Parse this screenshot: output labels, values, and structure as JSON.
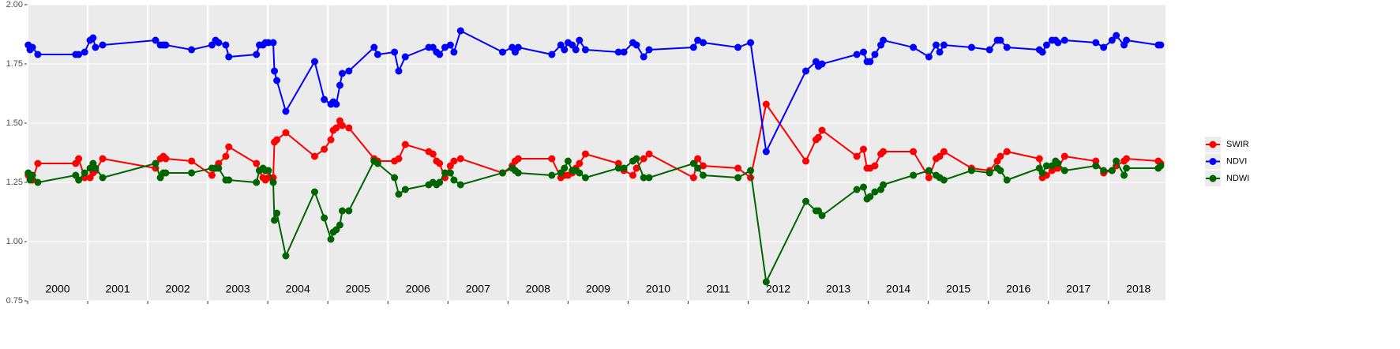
{
  "chart_data": {
    "type": "line",
    "x": [
      2000.01,
      2000.04,
      2000.08,
      2000.17,
      2000.8,
      2000.85,
      2000.95,
      2001.04,
      2001.09,
      2001.13,
      2001.25,
      2002.13,
      2002.21,
      2002.26,
      2002.3,
      2002.73,
      2003.07,
      2003.13,
      2003.18,
      2003.3,
      2003.35,
      2003.81,
      2003.86,
      2003.92,
      2003.96,
      2004.01,
      2004.09,
      2004.11,
      2004.15,
      2004.3,
      2004.78,
      2004.94,
      2005.05,
      2005.09,
      2005.14,
      2005.2,
      2005.24,
      2005.35,
      2005.77,
      2005.83,
      2006.11,
      2006.18,
      2006.29,
      2006.68,
      2006.75,
      2006.81,
      2006.86,
      2006.95,
      2007.04,
      2007.1,
      2007.21,
      2007.91,
      2008.07,
      2008.12,
      2008.17,
      2008.73,
      2008.88,
      2008.94,
      2009.0,
      2009.07,
      2009.13,
      2009.19,
      2009.29,
      2009.84,
      2009.93,
      2010.08,
      2010.14,
      2010.26,
      2010.35,
      2011.09,
      2011.16,
      2011.25,
      2011.83,
      2012.04,
      2012.3,
      2012.96,
      2013.13,
      2013.17,
      2013.23,
      2013.81,
      2013.92,
      2013.98,
      2014.03,
      2014.11,
      2014.21,
      2014.25,
      2014.75,
      2015.01,
      2015.13,
      2015.19,
      2015.26,
      2015.72,
      2016.02,
      2016.15,
      2016.2,
      2016.31,
      2016.85,
      2016.9,
      2016.97,
      2017.06,
      2017.12,
      2017.16,
      2017.27,
      2017.79,
      2017.92,
      2018.06,
      2018.13,
      2018.26,
      2018.3,
      2018.83,
      2018.87
    ],
    "series": [
      {
        "name": "SWIR",
        "color": "#ff0000",
        "values": [
          1.28,
          1.27,
          1.26,
          1.33,
          1.33,
          1.35,
          1.27,
          1.27,
          1.29,
          1.3,
          1.35,
          1.31,
          1.35,
          1.36,
          1.35,
          1.34,
          1.28,
          1.31,
          1.33,
          1.36,
          1.4,
          1.33,
          1.3,
          1.27,
          1.26,
          1.27,
          1.27,
          1.42,
          1.43,
          1.46,
          1.36,
          1.39,
          1.43,
          1.47,
          1.48,
          1.51,
          1.49,
          1.48,
          1.35,
          1.34,
          1.34,
          1.35,
          1.41,
          1.38,
          1.37,
          1.34,
          1.33,
          1.27,
          1.32,
          1.34,
          1.35,
          1.29,
          1.32,
          1.34,
          1.35,
          1.35,
          1.27,
          1.28,
          1.28,
          1.29,
          1.31,
          1.33,
          1.37,
          1.33,
          1.3,
          1.28,
          1.31,
          1.35,
          1.37,
          1.27,
          1.35,
          1.32,
          1.31,
          1.27,
          1.58,
          1.34,
          1.43,
          1.44,
          1.47,
          1.36,
          1.39,
          1.31,
          1.31,
          1.32,
          1.37,
          1.38,
          1.38,
          1.27,
          1.35,
          1.36,
          1.38,
          1.31,
          1.3,
          1.34,
          1.36,
          1.38,
          1.35,
          1.27,
          1.28,
          1.3,
          1.31,
          1.31,
          1.36,
          1.34,
          1.29,
          1.3,
          1.32,
          1.34,
          1.35,
          1.34,
          1.33
        ]
      },
      {
        "name": "NDVI",
        "color": "#0000ff",
        "values": [
          1.83,
          1.81,
          1.82,
          1.79,
          1.79,
          1.79,
          1.8,
          1.85,
          1.86,
          1.82,
          1.83,
          1.85,
          1.83,
          1.83,
          1.83,
          1.81,
          1.83,
          1.85,
          1.84,
          1.83,
          1.78,
          1.79,
          1.83,
          1.83,
          1.84,
          1.84,
          1.84,
          1.72,
          1.68,
          1.55,
          1.76,
          1.6,
          1.58,
          1.59,
          1.58,
          1.66,
          1.71,
          1.72,
          1.82,
          1.79,
          1.8,
          1.72,
          1.78,
          1.82,
          1.82,
          1.8,
          1.79,
          1.82,
          1.83,
          1.8,
          1.89,
          1.8,
          1.82,
          1.8,
          1.82,
          1.79,
          1.83,
          1.81,
          1.84,
          1.83,
          1.81,
          1.85,
          1.81,
          1.8,
          1.8,
          1.84,
          1.83,
          1.78,
          1.81,
          1.82,
          1.85,
          1.84,
          1.82,
          1.84,
          1.38,
          1.72,
          1.76,
          1.74,
          1.75,
          1.79,
          1.8,
          1.76,
          1.76,
          1.79,
          1.83,
          1.85,
          1.82,
          1.78,
          1.83,
          1.8,
          1.83,
          1.82,
          1.81,
          1.85,
          1.85,
          1.82,
          1.81,
          1.8,
          1.83,
          1.85,
          1.85,
          1.84,
          1.85,
          1.84,
          1.82,
          1.85,
          1.87,
          1.83,
          1.85,
          1.83,
          1.83
        ]
      },
      {
        "name": "NDWI",
        "color": "#006400",
        "values": [
          1.29,
          1.26,
          1.28,
          1.25,
          1.28,
          1.26,
          1.29,
          1.31,
          1.33,
          1.31,
          1.27,
          1.33,
          1.27,
          1.29,
          1.29,
          1.29,
          1.31,
          1.31,
          1.31,
          1.26,
          1.26,
          1.25,
          1.3,
          1.31,
          1.3,
          1.3,
          1.25,
          1.09,
          1.12,
          0.94,
          1.21,
          1.1,
          1.01,
          1.04,
          1.05,
          1.07,
          1.13,
          1.13,
          1.34,
          1.33,
          1.27,
          1.2,
          1.22,
          1.24,
          1.25,
          1.24,
          1.25,
          1.29,
          1.29,
          1.26,
          1.24,
          1.29,
          1.31,
          1.3,
          1.29,
          1.28,
          1.29,
          1.31,
          1.34,
          1.3,
          1.3,
          1.29,
          1.27,
          1.31,
          1.31,
          1.34,
          1.35,
          1.27,
          1.27,
          1.33,
          1.31,
          1.28,
          1.27,
          1.3,
          0.83,
          1.17,
          1.13,
          1.13,
          1.11,
          1.22,
          1.23,
          1.18,
          1.19,
          1.21,
          1.22,
          1.24,
          1.28,
          1.3,
          1.28,
          1.27,
          1.26,
          1.3,
          1.29,
          1.31,
          1.3,
          1.26,
          1.31,
          1.29,
          1.32,
          1.32,
          1.34,
          1.33,
          1.3,
          1.32,
          1.3,
          1.3,
          1.34,
          1.28,
          1.31,
          1.31,
          1.32
        ]
      }
    ],
    "year_labels": [
      2000,
      2001,
      2002,
      2003,
      2004,
      2005,
      2006,
      2007,
      2008,
      2009,
      2010,
      2011,
      2012,
      2013,
      2014,
      2015,
      2016,
      2017,
      2018
    ],
    "xlim": [
      2000,
      2018.95
    ],
    "xticks": [
      2000,
      2001,
      2002,
      2003,
      2004,
      2005,
      2006,
      2007,
      2008,
      2009,
      2010,
      2011,
      2012,
      2013,
      2014,
      2015,
      2016,
      2017,
      2018
    ],
    "ylim": [
      0.75,
      2.0
    ],
    "yticks": [
      0.75,
      {
        "value": 1,
        "label": "1.00"
      },
      1.25,
      {
        "value": 1.5,
        "label": "1.50"
      },
      1.75,
      {
        "value": 2,
        "label": "2.00"
      }
    ],
    "grid": true,
    "legend": "right"
  }
}
